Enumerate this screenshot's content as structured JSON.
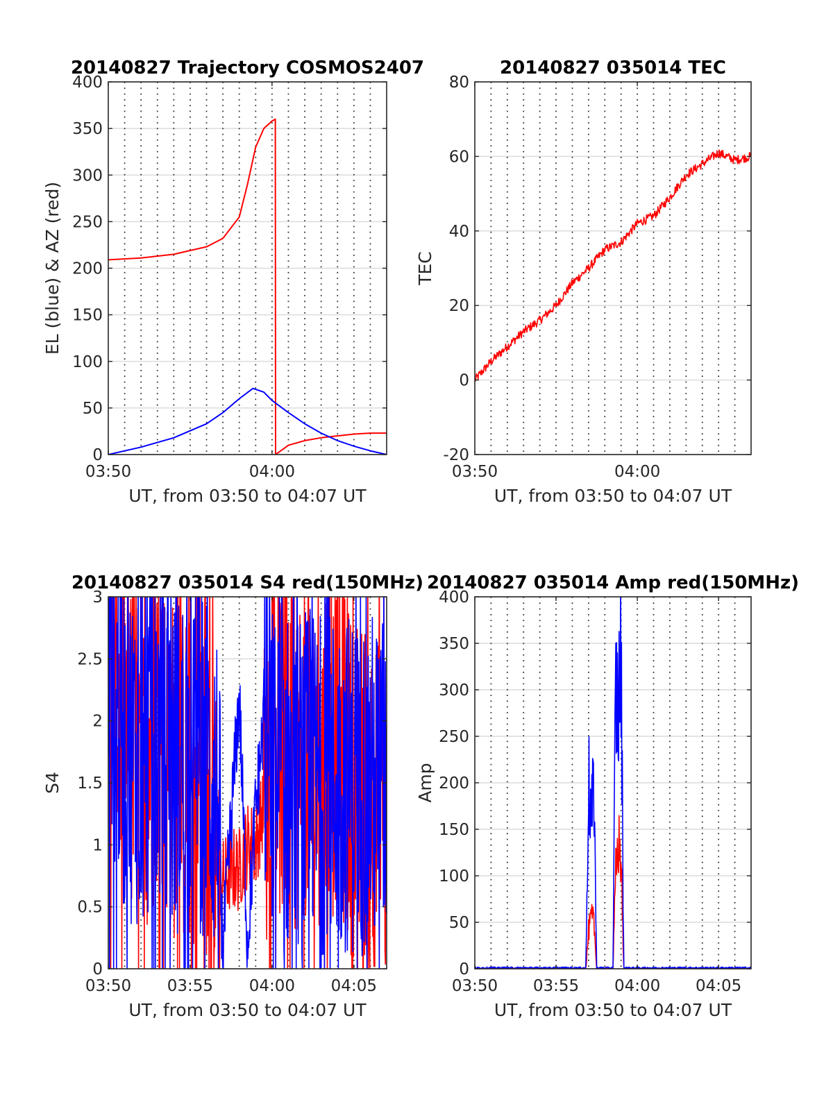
{
  "chart_data": [
    {
      "type": "line",
      "title": "20140827 Trajectory COSMOS2407",
      "xlabel": "UT, from 03:50 to 04:07 UT",
      "ylabel": "EL (blue) & AZ (red)",
      "xlim": [
        "03:50",
        "04:07"
      ],
      "ylim": [
        0,
        400
      ],
      "xticks": [
        "03:50",
        "04:00"
      ],
      "yticks": [
        0,
        50,
        100,
        150,
        200,
        250,
        300,
        350,
        400
      ],
      "grid": true,
      "series": [
        {
          "color": "#ff0000",
          "x": [
            "03:50",
            "03:52",
            "03:54",
            "03:56",
            "03:57",
            "03:58",
            "03:58:30",
            "03:59",
            "03:59:30",
            "04:00",
            "04:00:12",
            "04:00:13",
            "04:01",
            "04:02",
            "04:03",
            "04:04",
            "04:05",
            "04:06",
            "04:07"
          ],
          "values": [
            209,
            211,
            215,
            223,
            232,
            255,
            290,
            330,
            350,
            358,
            360,
            0,
            10,
            15,
            18,
            20,
            22,
            23,
            23
          ]
        },
        {
          "color": "#0000ff",
          "x": [
            "03:50",
            "03:52",
            "03:54",
            "03:56",
            "03:57",
            "03:58",
            "03:58:50",
            "03:59:30",
            "04:00",
            "04:01",
            "04:02",
            "04:03",
            "04:04",
            "04:05",
            "04:06",
            "04:07"
          ],
          "values": [
            0,
            8,
            18,
            33,
            45,
            60,
            71,
            67,
            58,
            45,
            33,
            23,
            15,
            9,
            4,
            0
          ]
        }
      ]
    },
    {
      "type": "line",
      "title": "20140827 035014 TEC",
      "xlabel": "UT, from 03:50 to 04:07 UT",
      "ylabel": "TEC",
      "xlim": [
        "03:50",
        "04:07"
      ],
      "ylim": [
        -20,
        80
      ],
      "xticks": [
        "03:50",
        "04:00"
      ],
      "yticks": [
        -20,
        0,
        20,
        40,
        60,
        80
      ],
      "grid": true,
      "series": [
        {
          "color": "#ff0000",
          "x": [
            "03:50",
            "03:51",
            "03:52",
            "03:53",
            "03:54",
            "03:55",
            "03:56",
            "03:57",
            "03:58",
            "03:59",
            "04:00",
            "04:01",
            "04:02",
            "04:03",
            "04:04",
            "04:05",
            "04:06",
            "04:07"
          ],
          "values": [
            0,
            5,
            9,
            13,
            16,
            20,
            26,
            30,
            35,
            37,
            42,
            44,
            49,
            55,
            58,
            61,
            59,
            60
          ]
        }
      ]
    },
    {
      "type": "line",
      "title": "20140827 035014 S4 red(150MHz)",
      "xlabel": "UT, from 03:50 to 04:07 UT",
      "ylabel": "S4",
      "xlim": [
        "03:50",
        "04:07"
      ],
      "ylim": [
        0,
        3
      ],
      "xticks": [
        "03:50",
        "03:55",
        "04:00",
        "04:05"
      ],
      "yticks": [
        0,
        0.5,
        1,
        1.5,
        2,
        2.5,
        3
      ],
      "grid": true,
      "series": [
        {
          "color": "#ff0000",
          "x": [
            "03:50",
            "03:51",
            "03:52",
            "03:53",
            "03:54",
            "03:55",
            "03:56",
            "03:57",
            "03:57:30",
            "03:58",
            "03:58:30",
            "03:59",
            "03:59:30",
            "04:00",
            "04:01",
            "04:02",
            "04:03",
            "04:04",
            "04:05",
            "04:06",
            "04:07"
          ],
          "values": [
            2.5,
            2.0,
            1.5,
            2.0,
            1.6,
            1.5,
            1.2,
            0.7,
            0.8,
            0.8,
            1.0,
            1.0,
            1.3,
            2.0,
            1.5,
            1.8,
            1.5,
            1.9,
            1.4,
            1.5,
            1.0
          ]
        },
        {
          "color": "#0000ff",
          "x": [
            "03:50",
            "03:51",
            "03:52",
            "03:53",
            "03:54",
            "03:55",
            "03:56",
            "03:56:40",
            "03:57",
            "03:57:30",
            "03:58",
            "03:58:30",
            "03:59",
            "03:59:30",
            "04:00",
            "04:01",
            "04:02",
            "04:03",
            "04:04",
            "04:05",
            "04:06",
            "04:07"
          ],
          "values": [
            2.5,
            1.8,
            1.7,
            1.9,
            1.6,
            1.8,
            1.6,
            1.4,
            0.15,
            1.2,
            2.2,
            0.2,
            1.3,
            2.0,
            1.6,
            1.5,
            1.5,
            1.5,
            1.5,
            1.5,
            1.5,
            1.5
          ]
        }
      ]
    },
    {
      "type": "line",
      "title": "20140827 035014 Amp red(150MHz)",
      "xlabel": "UT, from 03:50 to 04:07 UT",
      "ylabel": "Amp",
      "xlim": [
        "03:50",
        "04:07"
      ],
      "ylim": [
        0,
        400
      ],
      "xticks": [
        "03:50",
        "03:55",
        "04:00",
        "04:05"
      ],
      "yticks": [
        0,
        50,
        100,
        150,
        200,
        250,
        300,
        350,
        400
      ],
      "grid": true,
      "series": [
        {
          "color": "#ff0000",
          "x": [
            "03:50",
            "03:56:50",
            "03:57:00",
            "03:57:10",
            "03:57:20",
            "03:57:30",
            "03:58:30",
            "03:58:40",
            "03:58:50",
            "03:59:00",
            "03:59:10",
            "04:07"
          ],
          "values": [
            0,
            0,
            40,
            55,
            50,
            0,
            0,
            100,
            135,
            120,
            0,
            0
          ]
        },
        {
          "color": "#0000ff",
          "x": [
            "03:50",
            "03:56:50",
            "03:57:00",
            "03:57:10",
            "03:57:20",
            "03:57:30",
            "03:58:30",
            "03:58:40",
            "03:58:50",
            "03:59:00",
            "03:59:10",
            "04:07"
          ],
          "values": [
            1,
            1,
            205,
            150,
            205,
            1,
            1,
            300,
            280,
            340,
            1,
            1
          ]
        }
      ]
    }
  ]
}
